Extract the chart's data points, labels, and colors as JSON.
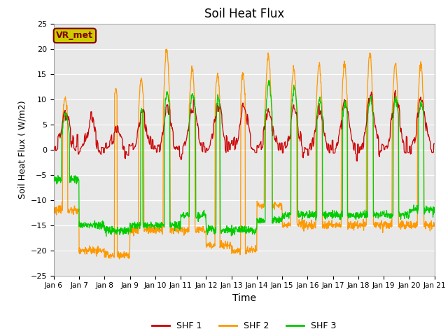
{
  "title": "Soil Heat Flux",
  "xlabel": "Time",
  "ylabel": "Soil Heat Flux ( W/m2)",
  "ylim": [
    -25,
    25
  ],
  "yticks": [
    -25,
    -20,
    -15,
    -10,
    -5,
    0,
    5,
    10,
    15,
    20,
    25
  ],
  "xtick_labels": [
    "Jan 6",
    "Jan 7",
    "Jan 8",
    "Jan 9",
    "Jan 10",
    "Jan 11",
    "Jan 12",
    "Jan 13",
    "Jan 14",
    "Jan 15",
    "Jan 16",
    "Jan 17",
    "Jan 18",
    "Jan 19",
    "Jan 20",
    "Jan 21"
  ],
  "colors": {
    "SHF1": "#cc0000",
    "SHF2": "#ff9900",
    "SHF3": "#00cc00"
  },
  "legend_labels": [
    "SHF 1",
    "SHF 2",
    "SHF 3"
  ],
  "annotation_text": "VR_met",
  "annotation_box_facecolor": "#cccc00",
  "annotation_box_edgecolor": "#800000",
  "annotation_text_color": "#800000",
  "plot_bg_color": "#e8e8e8",
  "grid_color": "#ffffff",
  "linewidth": 0.9
}
